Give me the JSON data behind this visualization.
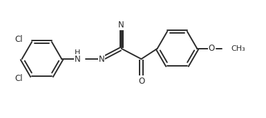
{
  "background_color": "#ffffff",
  "line_color": "#2a2a2a",
  "line_width": 1.4,
  "font_size": 8.5,
  "figsize": [
    3.85,
    1.72
  ],
  "dpi": 100,
  "xlim": [
    0,
    9.5
  ],
  "ylim": [
    0,
    4.3
  ],
  "label_N": "N",
  "label_O": "O",
  "label_HN": "H",
  "label_N2": "N",
  "label_Cl1": "Cl",
  "label_Cl2": "Cl",
  "label_O_meth": "O",
  "label_CH3": "CH₃"
}
